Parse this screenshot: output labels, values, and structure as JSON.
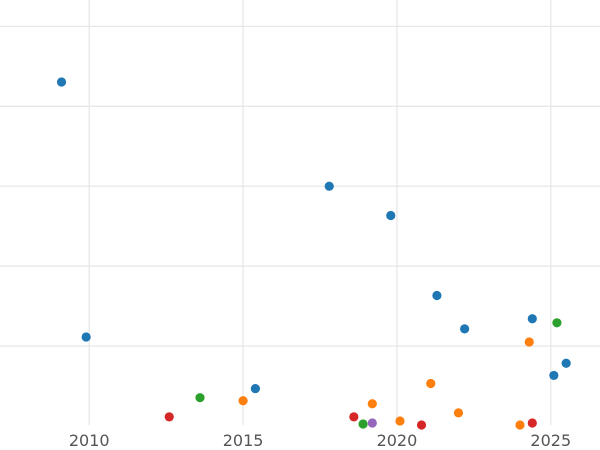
{
  "chart_data": {
    "type": "scatter",
    "title": "",
    "xlabel": "",
    "ylabel": "",
    "xlim": [
      2007.1,
      2026.6
    ],
    "ylim": [
      0,
      420
    ],
    "x_ticks": [
      2010,
      2015,
      2020,
      2025
    ],
    "x_tick_labels": [
      "2010",
      "2015",
      "2020",
      "2025"
    ],
    "y_gridlines": [
      78,
      157,
      236,
      315,
      394
    ],
    "grid": true,
    "legend": "none",
    "series": [
      {
        "color": "#1f77b4",
        "points": [
          {
            "x": 2009.1,
            "y": 339
          },
          {
            "x": 2009.9,
            "y": 87
          },
          {
            "x": 2015.4,
            "y": 36
          },
          {
            "x": 2017.8,
            "y": 236
          },
          {
            "x": 2019.8,
            "y": 207
          },
          {
            "x": 2021.3,
            "y": 128
          },
          {
            "x": 2022.2,
            "y": 95
          },
          {
            "x": 2024.4,
            "y": 105
          },
          {
            "x": 2025.1,
            "y": 49
          },
          {
            "x": 2025.5,
            "y": 61
          }
        ]
      },
      {
        "color": "#ff7f0e",
        "points": [
          {
            "x": 2015.0,
            "y": 24
          },
          {
            "x": 2019.2,
            "y": 21
          },
          {
            "x": 2020.1,
            "y": 4
          },
          {
            "x": 2021.1,
            "y": 41
          },
          {
            "x": 2022.0,
            "y": 12
          },
          {
            "x": 2024.0,
            "y": 0
          },
          {
            "x": 2024.3,
            "y": 82
          }
        ]
      },
      {
        "color": "#2ca02c",
        "points": [
          {
            "x": 2013.6,
            "y": 27
          },
          {
            "x": 2018.9,
            "y": 1
          },
          {
            "x": 2025.2,
            "y": 101
          }
        ]
      },
      {
        "color": "#d62728",
        "points": [
          {
            "x": 2012.6,
            "y": 8
          },
          {
            "x": 2018.6,
            "y": 8
          },
          {
            "x": 2020.8,
            "y": 0
          },
          {
            "x": 2024.4,
            "y": 2
          }
        ]
      },
      {
        "color": "#9467bd",
        "points": [
          {
            "x": 2019.2,
            "y": 2
          }
        ]
      }
    ]
  }
}
